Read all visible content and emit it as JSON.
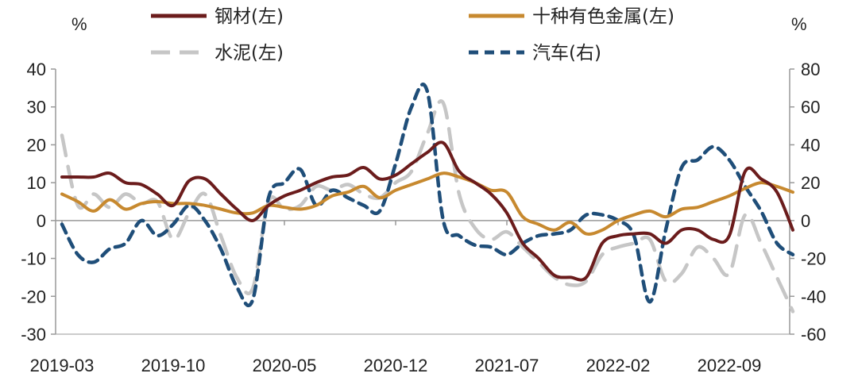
{
  "chart_data": {
    "type": "line",
    "left_unit": "%",
    "right_unit": "%",
    "y_left": {
      "min": -30,
      "max": 40,
      "ticks": [
        40,
        30,
        20,
        10,
        0,
        -10,
        -20,
        -30
      ]
    },
    "y_right": {
      "min": -60,
      "max": 80,
      "ticks": [
        80,
        60,
        40,
        20,
        0,
        -20,
        -40,
        -60
      ]
    },
    "x_tick_labels": [
      "2019-03",
      "2019-10",
      "2020-05",
      "2020-12",
      "2021-07",
      "2022-02",
      "2022-09"
    ],
    "x_tick_index": [
      0,
      7,
      14,
      21,
      28,
      35,
      42
    ],
    "x_count": 47,
    "legend": {
      "placement": "top"
    },
    "series": [
      {
        "name": "钢材(左)",
        "axis": "left",
        "color": "#6b1c1c",
        "dash": "solid",
        "values": [
          11.5,
          11.5,
          11.5,
          12.5,
          10,
          9.5,
          7,
          4,
          10.5,
          11,
          7,
          3,
          0,
          4,
          6.5,
          8,
          10,
          11.5,
          12,
          14,
          11,
          12,
          15,
          18,
          20.5,
          13,
          10,
          7,
          2,
          -6,
          -10,
          -14.5,
          -15,
          -15,
          -6,
          -4,
          -3.5,
          -3.5,
          -6,
          -2.5,
          -2.5,
          -5,
          -4,
          13,
          11,
          7.5,
          -2.5
        ]
      },
      {
        "name": "十种有色金属(左)",
        "axis": "left",
        "color": "#c7892f",
        "dash": "solid",
        "values": [
          7,
          5,
          2.5,
          5.5,
          3,
          4.5,
          5,
          4.5,
          4.5,
          4,
          3,
          2,
          2,
          4,
          3.5,
          3,
          4,
          6.5,
          7.5,
          9,
          6,
          8,
          9.5,
          11,
          12.5,
          11.5,
          10,
          8,
          7.5,
          1,
          -1,
          -2.5,
          -0.5,
          -3.5,
          -2.5,
          0,
          1.5,
          2.5,
          1,
          3,
          3.5,
          5,
          6.5,
          8.5,
          10,
          9,
          7.5
        ]
      },
      {
        "name": "水泥(左)",
        "axis": "left",
        "color": "#c6c6c6",
        "dash": "long",
        "values": [
          22.5,
          4,
          7,
          3.5,
          7,
          4.5,
          5,
          -5,
          2,
          7,
          -4,
          -15,
          -18,
          5,
          3,
          4,
          9,
          8,
          9.5,
          7,
          6,
          10,
          13,
          23,
          31,
          7,
          -2,
          -5,
          -3,
          -7,
          -11,
          -15,
          -17,
          -16,
          -9,
          -7,
          -6,
          -5,
          -16,
          -14,
          -7,
          -10,
          -14,
          1.5,
          -6,
          -15,
          -24
        ]
      },
      {
        "name": "汽车(右)",
        "axis": "right",
        "color": "#1f4e79",
        "dash": "short",
        "values": [
          -2,
          -18,
          -22,
          -15,
          -12,
          0,
          -8,
          -2,
          8,
          0,
          -15,
          -35,
          -42,
          12,
          20,
          27,
          8,
          16,
          12,
          8,
          5,
          30,
          60,
          68,
          0,
          -8,
          -13,
          -14,
          -18,
          -12,
          -8,
          -7,
          -5,
          3,
          3,
          0,
          -8,
          -43,
          -5,
          28,
          32,
          39,
          32,
          18,
          5,
          -12,
          -18
        ]
      }
    ]
  }
}
